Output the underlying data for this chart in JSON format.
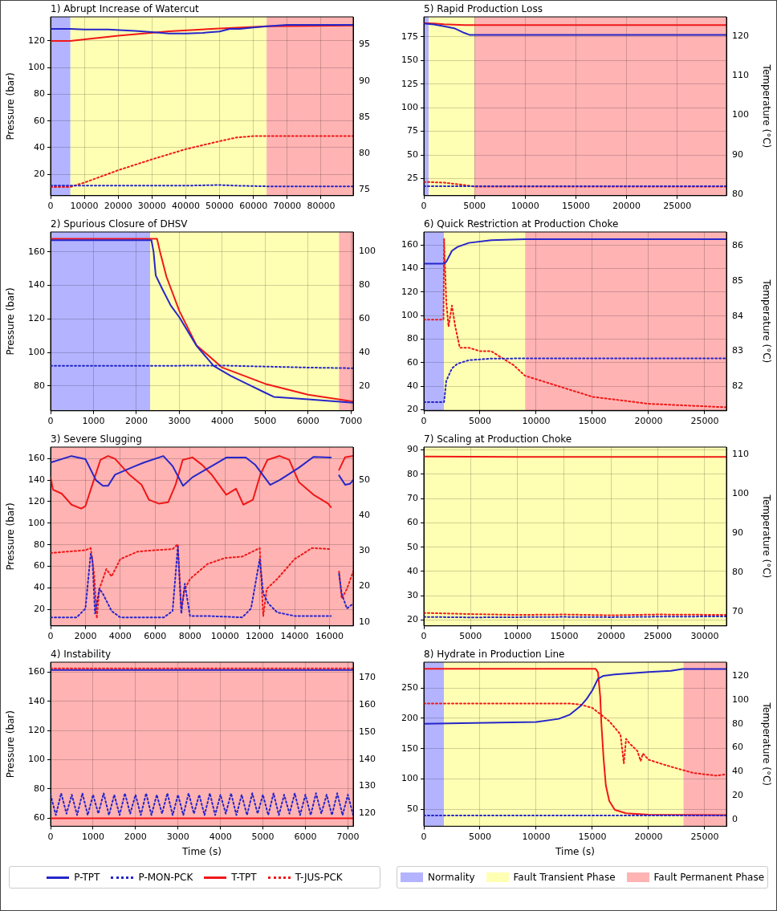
{
  "chart_data": [
    {
      "type": "line",
      "title": "1) Abrupt Increase of Watercut",
      "ylabel": "Pressure (bar)",
      "xlim": [
        0,
        89500
      ],
      "xticks": [
        0,
        10000,
        20000,
        30000,
        40000,
        50000,
        60000,
        70000,
        80000
      ],
      "ylim": [
        4,
        138
      ],
      "yticks": [
        20,
        40,
        60,
        80,
        100,
        120
      ],
      "y2lim": [
        74.2,
        98.8
      ],
      "y2ticks": [
        75,
        80,
        85,
        90,
        95
      ],
      "grid": true,
      "marker": "none",
      "bands": [
        {
          "axis": "x",
          "from": 0,
          "to": 5880,
          "color": "#b3b3ff"
        },
        {
          "axis": "x",
          "from": 5880,
          "to": 63900,
          "color": "#ffffb3"
        },
        {
          "axis": "x",
          "from": 63900,
          "to": 89500,
          "color": "#ffb3b3"
        }
      ],
      "series": [
        {
          "color": "#2626c9",
          "line_style": "solid",
          "x": [
            0,
            5800,
            10000,
            17000,
            25000,
            30000,
            35000,
            40000,
            45000,
            50000,
            53000,
            56000,
            60000,
            64000,
            70000,
            80000,
            89500
          ],
          "values": [
            129,
            129,
            128.5,
            128.5,
            127.5,
            126.5,
            125.5,
            125.5,
            126,
            127,
            129,
            129,
            130,
            131,
            132,
            132,
            132
          ]
        },
        {
          "color": "#2626c9",
          "line_style": "dotted",
          "x": [
            0,
            20000,
            40000,
            50000,
            55000,
            64000,
            89500
          ],
          "values": [
            11.5,
            11.5,
            11.5,
            12,
            11.5,
            11,
            11
          ]
        },
        {
          "color": "#f01818",
          "line_style": "solid",
          "axis": "y2",
          "x": [
            0,
            5800,
            20000,
            35000,
            50000,
            64000,
            89500
          ],
          "values": [
            95.5,
            95.5,
            96.2,
            96.8,
            97.2,
            97.5,
            97.6
          ]
        },
        {
          "color": "#f01818",
          "line_style": "dotted",
          "axis": "y2",
          "x": [
            0,
            5800,
            10000,
            20000,
            30000,
            40000,
            50000,
            55000,
            60000,
            64000,
            89500
          ],
          "values": [
            75.4,
            75.4,
            76,
            77.7,
            79.2,
            80.6,
            81.7,
            82.2,
            82.4,
            82.4,
            82.4
          ]
        }
      ]
    },
    {
      "type": "line",
      "title": "2) Spurious Closure of DHSV",
      "ylabel": "Pressure (bar)",
      "xlim": [
        0,
        7050
      ],
      "xticks": [
        0,
        1000,
        2000,
        3000,
        4000,
        5000,
        6000,
        7000
      ],
      "ylim": [
        65.2,
        171.9
      ],
      "yticks": [
        80,
        100,
        120,
        140,
        160
      ],
      "y2lim": [
        5.1,
        111.8
      ],
      "y2ticks": [
        20,
        40,
        60,
        80,
        100
      ],
      "grid": true,
      "marker": "none",
      "bands": [
        {
          "axis": "x",
          "from": 0,
          "to": 2320,
          "color": "#b3b3ff"
        },
        {
          "axis": "x",
          "from": 2320,
          "to": 6720,
          "color": "#ffffb3"
        },
        {
          "axis": "x",
          "from": 6720,
          "to": 7050,
          "color": "#ffb3b3"
        }
      ],
      "series": [
        {
          "color": "#2626c9",
          "line_style": "solid",
          "x": [
            0,
            2350,
            2400,
            2450,
            2600,
            2800,
            3000,
            3400,
            3800,
            4200,
            4600,
            5000,
            5200,
            6000,
            7050
          ],
          "values": [
            167,
            167,
            160,
            146,
            138,
            128,
            121,
            104,
            92,
            86,
            81,
            76,
            73.5,
            72,
            70
          ]
        },
        {
          "color": "#2626c9",
          "line_style": "dotted",
          "x": [
            0,
            2000,
            4000,
            6000,
            7050
          ],
          "values": [
            92,
            92,
            92.2,
            91,
            90.6
          ]
        },
        {
          "color": "#f01818",
          "line_style": "solid",
          "axis": "y2",
          "x": [
            0,
            2480,
            2550,
            2700,
            3000,
            3400,
            4000,
            5000,
            6000,
            7050
          ],
          "values": [
            107.7,
            107.7,
            100,
            85.1,
            64.7,
            44.2,
            30.9,
            21.2,
            14.7,
            10.6
          ]
        }
      ]
    },
    {
      "type": "line",
      "title": "3) Severe Slugging",
      "ylabel": "Pressure (bar)",
      "xlim": [
        0,
        17360
      ],
      "xticks": [
        0,
        2000,
        4000,
        6000,
        8000,
        10000,
        12000,
        14000,
        16000
      ],
      "ylim": [
        4.8,
        170.6
      ],
      "yticks": [
        20,
        40,
        60,
        80,
        100,
        120,
        140,
        160
      ],
      "y2lim": [
        8.9,
        59.2
      ],
      "y2ticks": [
        10,
        20,
        30,
        40,
        50
      ],
      "grid": true,
      "marker": "none",
      "bands": [
        {
          "axis": "x",
          "from": 0,
          "to": 17360,
          "color": "#ffb3b3"
        }
      ],
      "series": [
        {
          "color": "#2626c9",
          "line_style": "solid",
          "x": [
            0,
            1200,
            2000,
            2600,
            3000,
            3300,
            3700,
            4800,
            5360,
            6470,
            7000,
            7600,
            8140,
            9250,
            10080,
            11200,
            11750,
            12600,
            13140,
            14250,
            15080,
            16080,
            16300,
            16550,
            16900,
            17170,
            17360
          ],
          "values": [
            156.3,
            162.3,
            159.5,
            140,
            134.7,
            134.7,
            145,
            152.6,
            156.3,
            162.3,
            153,
            134.7,
            142.6,
            153.1,
            160.9,
            160.9,
            154,
            135.6,
            140,
            151.5,
            161.5,
            160.9,
            null,
            144.3,
            135.6,
            136.5,
            140
          ]
        },
        {
          "color": "#2626c9",
          "line_style": "dotted",
          "x": [
            0,
            1500,
            2000,
            2300,
            2400,
            2550,
            2800,
            3000,
            3500,
            4000,
            6500,
            7000,
            7300,
            7500,
            7700,
            8000,
            9000,
            11000,
            11500,
            12000,
            12200,
            12500,
            13000,
            14000,
            16080,
            16300,
            16550,
            16700,
            17000,
            17360
          ],
          "values": [
            12.7,
            12.7,
            20.9,
            71.4,
            66.8,
            16.3,
            39.3,
            34.7,
            18.6,
            12.7,
            12.7,
            18.6,
            78.3,
            16.3,
            43.9,
            14,
            14,
            12.7,
            20.9,
            66.8,
            34.7,
            25.5,
            17.3,
            14,
            14,
            null,
            53,
            34.7,
            20.9,
            25.5
          ]
        },
        {
          "color": "#f01818",
          "line_style": "solid",
          "axis": "y2",
          "x": [
            0,
            140,
            640,
            1200,
            1750,
            2000,
            2440,
            2860,
            3300,
            3700,
            4530,
            5220,
            5640,
            6200,
            6750,
            7170,
            7580,
            8140,
            8690,
            9250,
            10080,
            10640,
            11060,
            11610,
            12030,
            12440,
            13140,
            13690,
            14250,
            15080,
            15920,
            16080,
            16300,
            16550,
            16890,
            17360
          ],
          "values": [
            50.7,
            47.2,
            46.1,
            43,
            41.9,
            42.6,
            49.3,
            55.6,
            56.7,
            55.9,
            51.4,
            48.6,
            44.4,
            43.3,
            43.7,
            48.6,
            55.6,
            56.3,
            54.2,
            51.4,
            45.8,
            47.5,
            43,
            44.4,
            51.4,
            55.6,
            56.7,
            55.6,
            49.3,
            45.8,
            43.3,
            42.3,
            null,
            52.8,
            56.3,
            56.7
          ]
        },
        {
          "color": "#f01818",
          "line_style": "dotted",
          "axis": "y2",
          "x": [
            0,
            2000,
            2300,
            2500,
            2650,
            2800,
            3200,
            3500,
            4000,
            5000,
            6000,
            7000,
            7300,
            7500,
            7700,
            8000,
            9000,
            10000,
            11000,
            12000,
            12200,
            12400,
            13000,
            14000,
            15000,
            16080,
            16300,
            16550,
            16700,
            17000,
            17360
          ],
          "values": [
            29.4,
            30.2,
            30.8,
            23.5,
            11,
            19.3,
            24.9,
            22.8,
            27.7,
            29.8,
            30.2,
            30.5,
            31.9,
            13.8,
            19.3,
            22.1,
            26.3,
            28,
            28.4,
            30.8,
            11.7,
            19.3,
            22.1,
            27.7,
            30.8,
            30.5,
            null,
            24.2,
            16.6,
            19.3,
            24.2
          ]
        }
      ]
    },
    {
      "type": "line",
      "title": "4) Instability",
      "xlabel": "Time (s)",
      "ylabel": "Pressure (bar)",
      "xlim": [
        0,
        7125
      ],
      "xticks": [
        0,
        1000,
        2000,
        3000,
        4000,
        5000,
        6000,
        7000
      ],
      "ylim": [
        54.4,
        166.8
      ],
      "yticks": [
        60,
        80,
        100,
        120,
        140,
        160
      ],
      "y2lim": [
        115.3,
        175.6
      ],
      "y2ticks": [
        120,
        130,
        140,
        150,
        160,
        170
      ],
      "grid": true,
      "marker": "none",
      "legend": "bottom",
      "bands": [
        {
          "axis": "x",
          "from": 0,
          "to": 7125,
          "color": "#ffb3b3"
        }
      ],
      "series": [
        {
          "name": "P-TPT",
          "color": "#2626c9",
          "line_style": "solid",
          "x": [
            0,
            7125
          ],
          "values": [
            161.5,
            161.5
          ]
        },
        {
          "name": "P-MON-PCK",
          "color": "#2626c9",
          "line_style": "dotted",
          "x": [
            0,
            125,
            250,
            375,
            500,
            625,
            750,
            875,
            1000,
            1125,
            1250,
            1375,
            1500,
            1625,
            1750,
            1875,
            2000,
            2125,
            2250,
            2375,
            2500,
            2625,
            2750,
            2875,
            3000,
            3125,
            3250,
            3375,
            3500,
            3625,
            3750,
            3875,
            4000,
            4125,
            4250,
            4375,
            4500,
            4625,
            4750,
            4875,
            5000,
            5125,
            5250,
            5375,
            5500,
            5625,
            5750,
            5875,
            6000,
            6125,
            6250,
            6375,
            6500,
            6625,
            6750,
            6875,
            7000,
            7125
          ],
          "values": [
            76,
            62,
            77,
            63,
            76,
            62,
            77,
            62,
            76,
            63,
            77,
            62,
            76,
            62,
            77,
            63,
            76,
            62,
            77,
            62,
            76,
            63,
            77,
            62,
            76,
            62,
            77,
            63,
            76,
            62,
            77,
            62,
            76,
            63,
            77,
            62,
            76,
            62,
            77,
            63,
            76,
            62,
            77,
            62,
            76,
            63,
            77,
            62,
            76,
            62,
            77,
            63,
            76,
            62,
            77,
            62,
            76,
            62
          ]
        },
        {
          "name": "T-TPT",
          "color": "#f01818",
          "line_style": "solid",
          "axis": "y2",
          "x": [
            0,
            7125
          ],
          "values": [
            118.2,
            118.2
          ]
        },
        {
          "name": "T-JUS-PCK",
          "color": "#f01818",
          "line_style": "dotted",
          "axis": "y2",
          "x": [
            0,
            7125
          ],
          "values": [
            173.3,
            173.3
          ]
        }
      ]
    },
    {
      "type": "line",
      "title": "5) Rapid Production Loss",
      "y2label": "Temperature (°C)",
      "xlim": [
        0,
        29860
      ],
      "xticks": [
        0,
        5000,
        10000,
        15000,
        20000,
        25000
      ],
      "ylim": [
        7,
        196
      ],
      "yticks": [
        25,
        50,
        75,
        100,
        125,
        150,
        175
      ],
      "y2lim": [
        79.6,
        124.9
      ],
      "y2ticks": [
        80,
        90,
        100,
        110,
        120
      ],
      "grid": true,
      "marker": "none",
      "bands": [
        {
          "axis": "x",
          "from": 0,
          "to": 480,
          "color": "#b3b3ff"
        },
        {
          "axis": "x",
          "from": 480,
          "to": 5000,
          "color": "#ffffb3"
        },
        {
          "axis": "x",
          "from": 5000,
          "to": 29860,
          "color": "#ffb3b3"
        }
      ],
      "series": [
        {
          "color": "#2626c9",
          "line_style": "solid",
          "x": [
            0,
            1000,
            2000,
            3000,
            4000,
            4500,
            5000,
            29860
          ],
          "values": [
            189,
            188,
            186,
            184,
            179,
            177,
            177,
            177
          ]
        },
        {
          "color": "#2626c9",
          "line_style": "dotted",
          "x": [
            0,
            29860
          ],
          "values": [
            17,
            17
          ]
        },
        {
          "color": "#f01818",
          "line_style": "solid",
          "axis": "y2",
          "x": [
            0,
            1000,
            2000,
            3000,
            4000,
            29860
          ],
          "values": [
            123.3,
            123.2,
            123,
            122.9,
            122.8,
            122.8
          ]
        },
        {
          "color": "#f01818",
          "line_style": "dotted",
          "axis": "y2",
          "x": [
            0,
            2000,
            4000,
            5000,
            29860
          ],
          "values": [
            83.1,
            82.9,
            82.3,
            81.9,
            81.9
          ]
        }
      ]
    },
    {
      "type": "line",
      "title": "6) Quick Restriction at Production Choke",
      "y2label": "Temperature (°C)",
      "xlim": [
        0,
        26930
      ],
      "xticks": [
        0,
        5000,
        10000,
        15000,
        20000,
        25000
      ],
      "ylim": [
        19,
        171
      ],
      "yticks": [
        20,
        40,
        60,
        80,
        100,
        120,
        140,
        160
      ],
      "y2lim": [
        81.3,
        86.4
      ],
      "y2ticks": [
        82,
        83,
        84,
        85,
        86
      ],
      "grid": true,
      "marker": "none",
      "bands": [
        {
          "axis": "x",
          "from": 0,
          "to": 1800,
          "color": "#b3b3ff"
        },
        {
          "axis": "x",
          "from": 1800,
          "to": 9020,
          "color": "#ffffb3"
        },
        {
          "axis": "x",
          "from": 9020,
          "to": 26930,
          "color": "#ffb3b3"
        }
      ],
      "series": [
        {
          "color": "#2626c9",
          "line_style": "solid",
          "x": [
            0,
            1800,
            2000,
            2500,
            3000,
            4000,
            6000,
            9000,
            26930
          ],
          "values": [
            144,
            144,
            145.7,
            155,
            158.3,
            161.7,
            164,
            164.8,
            164.8
          ]
        },
        {
          "color": "#2626c9",
          "line_style": "dotted",
          "x": [
            0,
            1800,
            2000,
            2500,
            3000,
            4000,
            6000,
            9000,
            26930
          ],
          "values": [
            26.3,
            26.3,
            44.5,
            55,
            59,
            62,
            63.4,
            63.5,
            63.5
          ]
        },
        {
          "color": "#f01818",
          "line_style": "dotted",
          "axis": "y2",
          "x": [
            0,
            1750,
            1800,
            2000,
            2200,
            2500,
            2800,
            3200,
            4000,
            5000,
            6000,
            7000,
            8000,
            9000,
            12000,
            15000,
            20000,
            26930
          ],
          "values": [
            83.9,
            83.9,
            86.2,
            84.4,
            83.7,
            84.3,
            83.7,
            83.1,
            83.1,
            83,
            83,
            82.8,
            82.6,
            82.3,
            82,
            81.7,
            81.5,
            81.4
          ]
        }
      ]
    },
    {
      "type": "line",
      "title": "7) Scaling at Production Choke",
      "y2label": "Temperature (°C)",
      "xlim": [
        0,
        32320
      ],
      "xticks": [
        0,
        5000,
        10000,
        15000,
        20000,
        25000,
        30000
      ],
      "ylim": [
        17.6,
        91.2
      ],
      "yticks": [
        20,
        30,
        40,
        50,
        60,
        70,
        80,
        90
      ],
      "y2lim": [
        66.5,
        111.9
      ],
      "y2ticks": [
        70,
        80,
        90,
        100,
        110
      ],
      "grid": true,
      "marker": "none",
      "bands": [
        {
          "axis": "x",
          "from": 0,
          "to": 32320,
          "color": "#ffffb3"
        }
      ],
      "series": [
        {
          "color": "#2626c9",
          "line_style": "dotted",
          "x": [
            0,
            5000,
            10000,
            15000,
            20000,
            25000,
            32320
          ],
          "values": [
            21.3,
            21.1,
            21.2,
            21.3,
            21.2,
            21.4,
            21.5
          ]
        },
        {
          "color": "#f01818",
          "line_style": "solid",
          "axis": "y2",
          "x": [
            0,
            10000,
            32320
          ],
          "values": [
            109.5,
            109.4,
            109.4
          ]
        },
        {
          "color": "#f01818",
          "line_style": "dotted",
          "axis": "y2",
          "x": [
            0,
            5000,
            10000,
            15000,
            20000,
            25000,
            32320
          ],
          "values": [
            69.8,
            69.5,
            69.3,
            69.4,
            69.2,
            69.4,
            69.3
          ]
        }
      ]
    },
    {
      "type": "line",
      "title": "8) Hydrate in Production Line",
      "xlabel": "Time (s)",
      "y2label": "Temperature (°C)",
      "xlim": [
        0,
        26930
      ],
      "xticks": [
        0,
        5000,
        10000,
        15000,
        20000,
        25000
      ],
      "ylim": [
        22.3,
        292.3
      ],
      "yticks": [
        50,
        100,
        150,
        200,
        250
      ],
      "y2lim": [
        -5.6,
        131.5
      ],
      "y2ticks": [
        0,
        20,
        40,
        60,
        80,
        100,
        120
      ],
      "grid": true,
      "marker": "none",
      "legend": "bottom",
      "bands": [
        {
          "axis": "x",
          "from": 0,
          "to": 1800,
          "color": "#b3b3ff",
          "label": "Normality"
        },
        {
          "axis": "x",
          "from": 1800,
          "to": 23110,
          "color": "#ffffb3",
          "label": "Fault Transient Phase"
        },
        {
          "axis": "x",
          "from": 23110,
          "to": 26930,
          "color": "#ffb3b3",
          "label": "Fault Permanent Phase"
        }
      ],
      "series": [
        {
          "color": "#2626c9",
          "line_style": "solid",
          "x": [
            0,
            10000,
            12000,
            13000,
            14000,
            14500,
            15000,
            15500,
            16000,
            17000,
            20000,
            22000,
            23000,
            26930
          ],
          "values": [
            191,
            194,
            199,
            206,
            221,
            232,
            246,
            265,
            270,
            272,
            276,
            278,
            281,
            281
          ]
        },
        {
          "color": "#2626c9",
          "line_style": "dotted",
          "x": [
            0,
            26930
          ],
          "values": [
            40,
            40
          ]
        },
        {
          "color": "#f01818",
          "line_style": "solid",
          "axis": "y2",
          "x": [
            0,
            15300,
            15500,
            15700,
            15800,
            16000,
            16200,
            16500,
            17000,
            18000,
            20000,
            26930
          ],
          "values": [
            125.9,
            125.9,
            123,
            102.6,
            80.4,
            50.7,
            28.5,
            15.6,
            8.1,
            5.2,
            4.1,
            3.7
          ]
        },
        {
          "color": "#f01818",
          "line_style": "dotted",
          "axis": "y2",
          "x": [
            0,
            13000,
            14000,
            15000,
            15500,
            16000,
            16500,
            17000,
            17500,
            17800,
            18000,
            18300,
            18500,
            19000,
            19300,
            19500,
            20000,
            21000,
            22000,
            23000,
            24000,
            25000,
            26000,
            26930
          ],
          "values": [
            97,
            97,
            95.9,
            93.3,
            89.6,
            85.9,
            82.2,
            76.7,
            71.1,
            47,
            67.4,
            63.7,
            61.9,
            57.4,
            48.9,
            55.2,
            50,
            47,
            44.1,
            41.5,
            38.9,
            37.8,
            36.7,
            37.8
          ]
        }
      ]
    }
  ]
}
